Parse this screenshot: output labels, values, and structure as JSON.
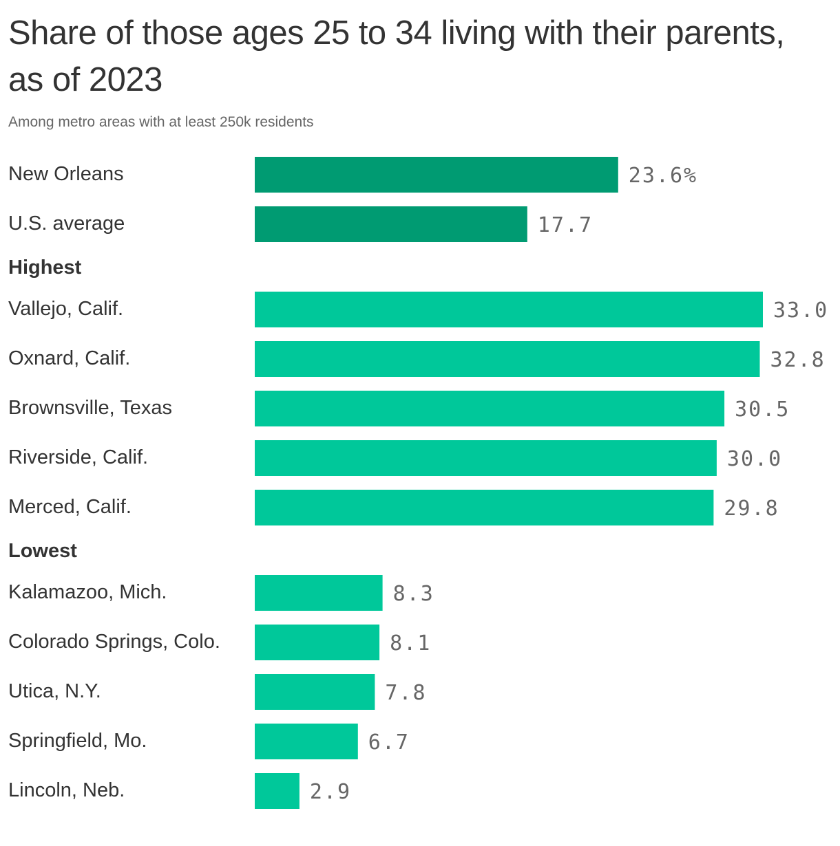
{
  "title": "Share of those ages 25 to 34 living with their parents, as of 2023",
  "subtitle": "Among metro areas with at least 250k residents",
  "colors": {
    "highlight": "#009b72",
    "bar": "#00c89a",
    "text": "#333333",
    "muted": "#666666"
  },
  "chart_data": {
    "type": "bar",
    "orientation": "horizontal",
    "unit": "%",
    "xlim": [
      0,
      33
    ],
    "grid": false,
    "groups": [
      {
        "name": "",
        "color": "#009b72",
        "categories": [
          "New Orleans",
          "U.S. average"
        ],
        "values": [
          23.6,
          17.7
        ],
        "labels": [
          "23.6%",
          "17.7"
        ]
      },
      {
        "name": "Highest",
        "color": "#00c89a",
        "categories": [
          "Vallejo, Calif.",
          "Oxnard, Calif.",
          "Brownsville, Texas",
          "Riverside, Calif.",
          "Merced, Calif."
        ],
        "values": [
          33.0,
          32.8,
          30.5,
          30.0,
          29.8
        ],
        "labels": [
          "33.0",
          "32.8",
          "30.5",
          "30.0",
          "29.8"
        ]
      },
      {
        "name": "Lowest",
        "color": "#00c89a",
        "categories": [
          "Kalamazoo, Mich.",
          "Colorado Springs, Colo.",
          "Utica, N.Y.",
          "Springfield, Mo.",
          "Lincoln, Neb."
        ],
        "values": [
          8.3,
          8.1,
          7.8,
          6.7,
          2.9
        ],
        "labels": [
          "8.3",
          "8.1",
          "7.8",
          "6.7",
          "2.9"
        ]
      }
    ]
  }
}
